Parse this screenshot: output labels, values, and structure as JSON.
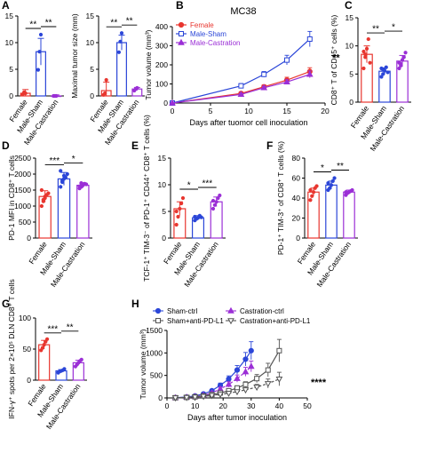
{
  "colors": {
    "female": "#e8362f",
    "male_sham": "#2b46d8",
    "male_castration": "#9b2fd6",
    "axis": "#000000"
  },
  "chart_data": [
    {
      "id": "A1",
      "panel_label": "A",
      "type": "bar",
      "ylabel": "HCC multiplicity",
      "categories": [
        "Female",
        "Male-Sham",
        "Male-Castration"
      ],
      "ylim": [
        0,
        15
      ],
      "yticks": [
        "0",
        "5",
        "10",
        "15"
      ],
      "values": [
        0.5,
        8.3,
        0.0
      ],
      "errors": [
        0.7,
        2.5,
        0.2
      ],
      "points": [
        [
          0.3,
          0.7,
          0.5
        ],
        [
          4.9,
          8.3,
          11.5
        ],
        [
          0,
          0,
          0
        ]
      ],
      "significance": [
        {
          "from": 0,
          "to": 1,
          "label": "**"
        },
        {
          "from": 1,
          "to": 2,
          "label": "**"
        }
      ]
    },
    {
      "id": "A2",
      "panel_label": "",
      "type": "bar",
      "ylabel": "Maximal tumor size (mm)",
      "categories": [
        "Female",
        "Male-Sham",
        "Male-Castration"
      ],
      "ylim": [
        0,
        15
      ],
      "yticks": [
        "0",
        "5",
        "10",
        "15"
      ],
      "values": [
        1.0,
        10.0,
        1.3
      ],
      "errors": [
        1.6,
        1.4,
        0.3
      ],
      "points": [
        [
          0.2,
          0.5,
          3.0
        ],
        [
          8.2,
          10.2,
          11.8
        ],
        [
          1.0,
          1.3,
          1.5
        ]
      ],
      "significance": [
        {
          "from": 0,
          "to": 1,
          "label": "**"
        },
        {
          "from": 1,
          "to": 2,
          "label": "**"
        }
      ]
    },
    {
      "id": "B",
      "panel_label": "B",
      "type": "line",
      "title": "MC38",
      "xlabel": "Days after tuomor cell inoculation",
      "ylabel": "Tumor volume (mm³)",
      "xlim": [
        0,
        20
      ],
      "ylim": [
        0,
        400
      ],
      "xticks": [
        "0",
        "5",
        "10",
        "15",
        "20"
      ],
      "yticks": [
        "0",
        "100",
        "200",
        "300",
        "400"
      ],
      "x": [
        0,
        9,
        12,
        15,
        18
      ],
      "series": [
        {
          "name": "Female",
          "key": "female",
          "values": [
            0,
            50,
            85,
            120,
            165
          ],
          "errors": [
            0,
            8,
            10,
            15,
            20
          ]
        },
        {
          "name": "Male-Sham",
          "key": "male_sham",
          "values": [
            0,
            90,
            150,
            225,
            335
          ],
          "errors": [
            0,
            12,
            15,
            25,
            40
          ]
        },
        {
          "name": "Male-Castration",
          "key": "male_castration",
          "values": [
            0,
            45,
            80,
            110,
            150
          ],
          "errors": [
            0,
            6,
            8,
            12,
            18
          ]
        }
      ],
      "annotation": "**"
    },
    {
      "id": "C",
      "panel_label": "C",
      "type": "bar",
      "ylabel": "CD8⁺ T of CD45⁺ cells (%)",
      "categories": [
        "Female",
        "Male-Sham",
        "Male-Castration"
      ],
      "ylim": [
        0,
        15
      ],
      "yticks": [
        "0",
        "5",
        "10",
        "15"
      ],
      "values": [
        8.5,
        5.5,
        7.3
      ],
      "errors": [
        1.5,
        0.6,
        1.0
      ],
      "points": [
        [
          6.0,
          8.0,
          9.5,
          11.2,
          7.0,
          9.0,
          8.5
        ],
        [
          4.5,
          5.0,
          5.6,
          6.2,
          5.3,
          6.0,
          5.8
        ],
        [
          6.0,
          6.8,
          7.5,
          8.0,
          8.8,
          7.0,
          6.5
        ]
      ],
      "significance": [
        {
          "from": 0,
          "to": 1,
          "label": "**"
        },
        {
          "from": 1,
          "to": 2,
          "label": "*"
        }
      ]
    },
    {
      "id": "D",
      "panel_label": "D",
      "type": "bar",
      "ylabel": "PD-1 MFI in CD8⁺ T cells",
      "categories": [
        "Female",
        "Male-Sham",
        "Male-Castration"
      ],
      "ylim": [
        0,
        2500
      ],
      "yticks": [
        "0",
        "500",
        "1000",
        "1500",
        "2000",
        "2500"
      ],
      "values": [
        1300,
        1850,
        1650
      ],
      "errors": [
        180,
        200,
        80
      ],
      "points": [
        [
          1000,
          1150,
          1250,
          1350,
          1400,
          1500,
          1200,
          1300
        ],
        [
          1600,
          1750,
          1850,
          1900,
          2000,
          2100,
          1800,
          1950
        ],
        [
          1550,
          1600,
          1650,
          1700,
          1680,
          1620,
          1720,
          1660
        ]
      ],
      "significance": [
        {
          "from": 0,
          "to": 1,
          "label": "***"
        },
        {
          "from": 1,
          "to": 2,
          "label": "*"
        }
      ]
    },
    {
      "id": "E",
      "panel_label": "E",
      "type": "bar",
      "ylabel": "TCF-1⁺ TIM-3⁻ of PD-1⁺ CD44⁺ CD8⁺ T cells (%)",
      "categories": [
        "Female",
        "Male-Sham",
        "Male-Castration"
      ],
      "ylim": [
        0,
        15
      ],
      "yticks": [
        "0",
        "5",
        "10",
        "15"
      ],
      "values": [
        5.5,
        3.8,
        6.8
      ],
      "errors": [
        1.3,
        0.4,
        0.9
      ],
      "points": [
        [
          2.5,
          4.0,
          5.5,
          6.5,
          7.5,
          5.0
        ],
        [
          3.3,
          3.6,
          3.8,
          4.2,
          3.9,
          4.0
        ],
        [
          5.5,
          6.2,
          6.8,
          7.5,
          8.0,
          7.0
        ]
      ],
      "significance": [
        {
          "from": 0,
          "to": 1,
          "label": "*"
        },
        {
          "from": 1,
          "to": 2,
          "label": "***"
        }
      ]
    },
    {
      "id": "F",
      "panel_label": "F",
      "type": "bar",
      "ylabel": "PD-1⁺ TIM-3⁺ of CD8⁺ T cells (%)",
      "categories": [
        "Female",
        "Male-Sham",
        "Male-Castration"
      ],
      "ylim": [
        0,
        80
      ],
      "yticks": [
        "0",
        "20",
        "40",
        "60",
        "80"
      ],
      "values": [
        46,
        53,
        46
      ],
      "errors": [
        4,
        4,
        2
      ],
      "points": [
        [
          38,
          42,
          46,
          50,
          52,
          48
        ],
        [
          48,
          50,
          53,
          57,
          60,
          55
        ],
        [
          43,
          45,
          46,
          47,
          48,
          46
        ]
      ],
      "significance": [
        {
          "from": 0,
          "to": 1,
          "label": "*"
        },
        {
          "from": 1,
          "to": 2,
          "label": "**"
        }
      ]
    },
    {
      "id": "G",
      "panel_label": "G",
      "type": "bar",
      "ylabel": "IFN-γ⁺ spots per 2×10⁵ DLN CD8⁺ T cells",
      "categories": [
        "Female",
        "Male-Sham",
        "Male-Castration"
      ],
      "ylim": [
        0,
        100
      ],
      "yticks": [
        "0",
        "50",
        "100"
      ],
      "values": [
        57,
        15,
        28
      ],
      "errors": [
        7,
        2,
        4
      ],
      "points": [
        [
          48,
          52,
          57,
          62,
          66
        ],
        [
          12,
          14,
          15,
          16,
          18
        ],
        [
          22,
          25,
          28,
          31,
          33
        ]
      ],
      "significance": [
        {
          "from": 0,
          "to": 1,
          "label": "***"
        },
        {
          "from": 1,
          "to": 2,
          "label": "**"
        }
      ]
    },
    {
      "id": "H",
      "panel_label": "H",
      "type": "line",
      "xlabel": "Days after tumor inoculation",
      "ylabel": "Tumor volume (mm³)",
      "xlim": [
        0,
        50
      ],
      "ylim": [
        0,
        1500
      ],
      "xticks": [
        "0",
        "10",
        "20",
        "30",
        "40",
        "50"
      ],
      "yticks": [
        "0",
        "500",
        "1000",
        "1500"
      ],
      "legend": [
        {
          "name": "Sham-ctrl",
          "key": "sham_ctrl"
        },
        {
          "name": "Castration-ctrl",
          "key": "castration_ctrl"
        },
        {
          "name": "Sham+anti-PD-L1",
          "key": "sham_pdl1"
        },
        {
          "name": "Castration+anti-PD-L1",
          "key": "castration_pdl1"
        }
      ],
      "series": [
        {
          "name": "Sham-ctrl",
          "key": "sham_ctrl",
          "marker": "circle",
          "x": [
            3,
            7,
            10,
            13,
            16,
            19,
            22,
            25,
            28,
            30
          ],
          "values": [
            5,
            20,
            45,
            90,
            160,
            280,
            420,
            620,
            860,
            1050
          ],
          "errors": [
            2,
            5,
            10,
            20,
            30,
            50,
            70,
            100,
            150,
            200
          ]
        },
        {
          "name": "Castration-ctrl",
          "key": "castration_ctrl",
          "marker": "triangle",
          "x": [
            3,
            7,
            10,
            13,
            16,
            19,
            22,
            25,
            28,
            30
          ],
          "values": [
            4,
            15,
            30,
            60,
            110,
            200,
            300,
            430,
            580,
            700
          ],
          "errors": [
            2,
            4,
            8,
            15,
            25,
            40,
            60,
            80,
            100,
            120
          ]
        },
        {
          "name": "Sham+anti-PD-L1",
          "key": "sham_pdl1",
          "marker": "square",
          "x": [
            3,
            7,
            10,
            13,
            16,
            19,
            22,
            25,
            28,
            32,
            36,
            40
          ],
          "values": [
            4,
            12,
            25,
            45,
            75,
            110,
            160,
            220,
            300,
            430,
            620,
            1050
          ],
          "errors": [
            2,
            4,
            6,
            10,
            15,
            25,
            35,
            50,
            60,
            90,
            150,
            250
          ]
        },
        {
          "name": "Castration+anti-PD-L1",
          "key": "castration_pdl1",
          "marker": "triangle-down",
          "x": [
            3,
            7,
            10,
            13,
            16,
            19,
            22,
            25,
            28,
            32,
            36,
            40
          ],
          "values": [
            3,
            10,
            20,
            35,
            55,
            80,
            105,
            140,
            180,
            240,
            320,
            420
          ],
          "errors": [
            1,
            3,
            5,
            8,
            12,
            18,
            25,
            30,
            40,
            60,
            100,
            150
          ]
        }
      ],
      "series_colors": {
        "sham_ctrl": "#2b46d8",
        "castration_ctrl": "#9b2fd6",
        "sham_pdl1": "#555555",
        "castration_pdl1": "#555555"
      },
      "annotation": "****"
    }
  ]
}
